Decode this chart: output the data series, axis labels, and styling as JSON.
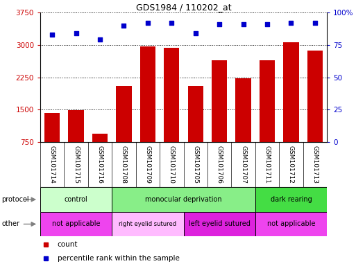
{
  "title": "GDS1984 / 110202_at",
  "samples": [
    "GSM101714",
    "GSM101715",
    "GSM101716",
    "GSM101708",
    "GSM101709",
    "GSM101710",
    "GSM101705",
    "GSM101706",
    "GSM101707",
    "GSM101711",
    "GSM101712",
    "GSM101713"
  ],
  "counts": [
    1430,
    1480,
    950,
    2050,
    2970,
    2930,
    2050,
    2650,
    2230,
    2650,
    3060,
    2860
  ],
  "percentiles": [
    83,
    84,
    79,
    90,
    92,
    92,
    84,
    91,
    91,
    91,
    92,
    92
  ],
  "ylim_left": [
    750,
    3750
  ],
  "ylim_right": [
    0,
    100
  ],
  "yticks_left": [
    750,
    1500,
    2250,
    3000,
    3750
  ],
  "yticks_right": [
    0,
    25,
    50,
    75,
    100
  ],
  "bar_color": "#cc0000",
  "scatter_color": "#0000cc",
  "protocol_groups": [
    {
      "label": "control",
      "start": 0,
      "end": 3,
      "color": "#ccffcc"
    },
    {
      "label": "monocular deprivation",
      "start": 3,
      "end": 9,
      "color": "#88ee88"
    },
    {
      "label": "dark rearing",
      "start": 9,
      "end": 12,
      "color": "#44dd44"
    }
  ],
  "other_groups": [
    {
      "label": "not applicable",
      "start": 0,
      "end": 3,
      "color": "#ee44ee"
    },
    {
      "label": "right eyelid sutured",
      "start": 3,
      "end": 6,
      "color": "#ffbbff"
    },
    {
      "label": "left eyelid sutured",
      "start": 6,
      "end": 9,
      "color": "#dd22dd"
    },
    {
      "label": "not applicable",
      "start": 9,
      "end": 12,
      "color": "#ee44ee"
    }
  ],
  "legend_count_label": "count",
  "legend_pct_label": "percentile rank within the sample",
  "background_color": "#ffffff",
  "label_bg_color": "#d3d3d3",
  "label_fontsize": 6.5,
  "bar_color_legend": "#cc0000",
  "scatter_color_legend": "#0000cc"
}
